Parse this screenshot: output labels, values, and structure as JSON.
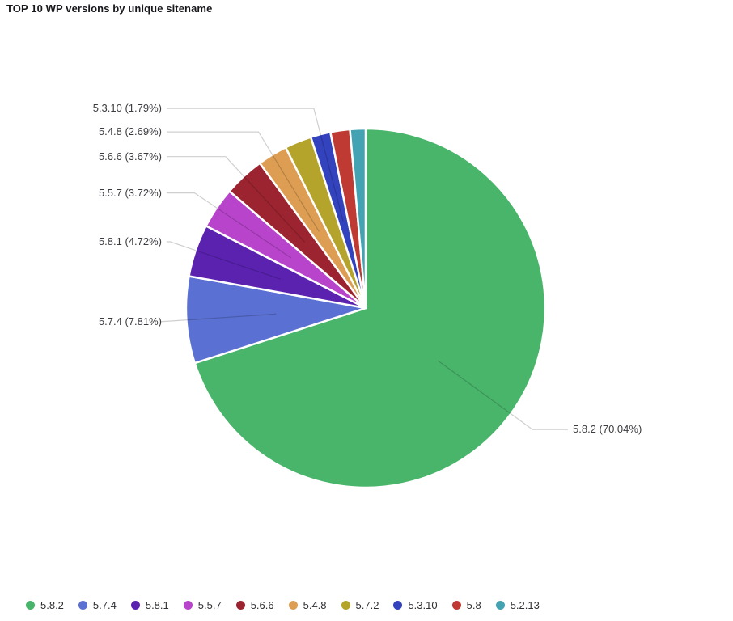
{
  "title": "TOP 10 WP versions by unique sitename",
  "chart_data": {
    "type": "pie",
    "title": "TOP 10 WP versions by unique sitename",
    "background_color": "#ffffff",
    "label_text_color": "#3b3b41",
    "label_line_color": "rgba(0,0,0,0.19)",
    "start_angle_deg": 0,
    "direction": "clockwise",
    "legend_position": "bottom-left",
    "series": [
      {
        "label": "5.8.2",
        "value": 70.04,
        "color": "#49b56b",
        "labeled": true,
        "display": "5.8.2 (70.04%)"
      },
      {
        "label": "5.7.4",
        "value": 7.81,
        "color": "#5a70d2",
        "labeled": true,
        "display": "5.7.4 (7.81%)"
      },
      {
        "label": "5.8.1",
        "value": 4.72,
        "color": "#5b22b0",
        "labeled": true,
        "display": "5.8.1 (4.72%)"
      },
      {
        "label": "5.5.7",
        "value": 3.72,
        "color": "#b844cc",
        "labeled": true,
        "display": "5.5.7 (3.72%)"
      },
      {
        "label": "5.6.6",
        "value": 3.67,
        "color": "#9c2430",
        "labeled": true,
        "display": "5.6.6 (3.67%)"
      },
      {
        "label": "5.4.8",
        "value": 2.69,
        "color": "#dd9e53",
        "labeled": true,
        "display": "5.4.8 (2.69%)"
      },
      {
        "label": "5.7.2",
        "value": 2.41,
        "color": "#b5a42b",
        "labeled": false,
        "estimated": true
      },
      {
        "label": "5.3.10",
        "value": 1.79,
        "color": "#3342bd",
        "labeled": true,
        "display": "5.3.10 (1.79%)"
      },
      {
        "label": "5.8",
        "value": 1.75,
        "color": "#bf3a32",
        "labeled": false,
        "estimated": true
      },
      {
        "label": "5.2.13",
        "value": 1.4,
        "color": "#44a3b3",
        "labeled": false,
        "estimated": true
      }
    ],
    "legend": [
      "5.8.2",
      "5.7.4",
      "5.8.1",
      "5.5.7",
      "5.6.6",
      "5.4.8",
      "5.7.2",
      "5.3.10",
      "5.8",
      "5.2.13"
    ]
  }
}
